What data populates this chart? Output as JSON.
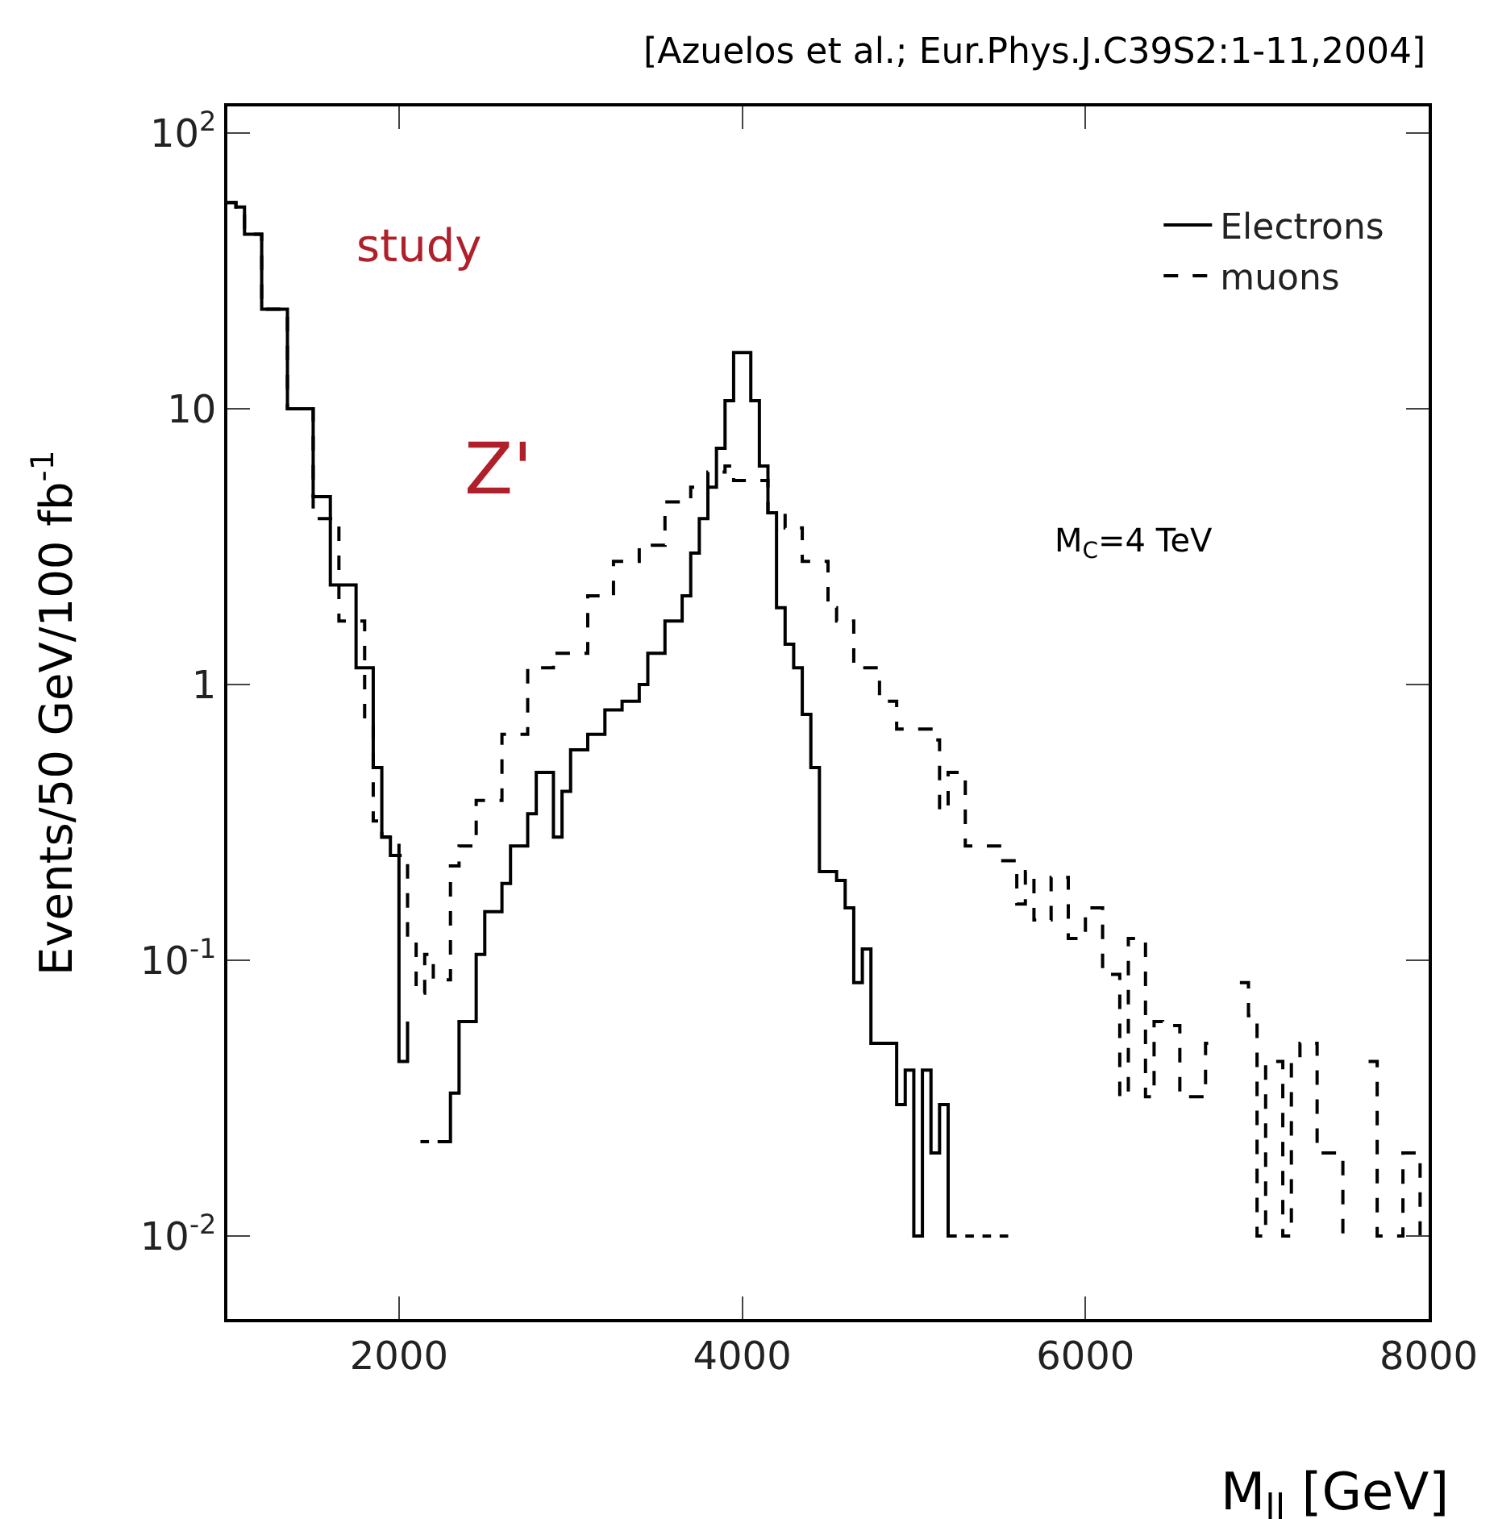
{
  "chart_data": {
    "type": "step",
    "xlabel": "M$_{ll}$ [GeV]",
    "ylabel": "Events/50 GeV/100 fb$^{-1}$",
    "annotations": [
      "[Azuelos et al.; Eur.Phys.J.C39S2:1-11,2004]",
      "study",
      "Z'",
      "M$_{C}$=4 TeV"
    ],
    "xlim": [
      1000,
      8000
    ],
    "xticks": [
      2000,
      4000,
      6000,
      8000
    ],
    "ylim": [
      0.005,
      125
    ],
    "yticks": [
      {
        "value": 100,
        "label": "10$^{2}$"
      },
      10,
      1,
      {
        "value": 0.1,
        "label": "10$^{-1}$"
      },
      {
        "value": 0.01,
        "label": "10$^{-2}$"
      }
    ],
    "log": "y",
    "legend": "top right",
    "marker": "none",
    "series": [
      {
        "name": "Electrons",
        "color": "#000000",
        "line_style": "solid",
        "x": [
          1000,
          1050,
          1100,
          1200,
          1350,
          1500,
          1600,
          1750,
          1850,
          1900,
          1950,
          2000,
          2050,
          2100,
          2125,
          2175,
          2200,
          2225,
          2300,
          2350,
          2450,
          2500,
          2600,
          2650,
          2750,
          2800,
          2900,
          2950,
          3000,
          3100,
          3200,
          3300,
          3400,
          3450,
          3550,
          3650,
          3700,
          3750,
          3800,
          3850,
          3900,
          3950,
          4000,
          4050,
          4100,
          4150,
          4200,
          4250,
          4300,
          4350,
          4400,
          4450,
          4550,
          4600,
          4650,
          4700,
          4750,
          4900,
          4950,
          5000,
          5050,
          5100,
          5150,
          5200,
          5250,
          5275,
          5300,
          5350,
          5375,
          5400,
          5450,
          5475,
          5500,
          5550
        ],
        "values": [
          56,
          54,
          43,
          23,
          10,
          4.8,
          2.3,
          1.15,
          0.5,
          0.28,
          0.24,
          0.043,
          0.06,
          null,
          0.022,
          0.022,
          null,
          0.022,
          0.033,
          0.06,
          0.105,
          0.15,
          0.19,
          0.26,
          0.34,
          0.48,
          0.28,
          0.41,
          0.58,
          0.66,
          0.81,
          0.87,
          1.0,
          1.3,
          1.7,
          2.1,
          3.0,
          4.0,
          5.2,
          7.2,
          10.7,
          16,
          16,
          10.7,
          6.2,
          4.2,
          1.9,
          1.4,
          1.15,
          0.78,
          0.5,
          0.21,
          0.195,
          0.155,
          0.083,
          0.11,
          0.05,
          0.03,
          0.04,
          0.01,
          0.04,
          0.02,
          0.03,
          0.01,
          0.01,
          null,
          0.01,
          0.01,
          null,
          0.01,
          0.01,
          null,
          0.01,
          0.01
        ]
      },
      {
        "name": "muons",
        "color": "#000000",
        "line_style": "dashed",
        "x": [
          1000,
          1050,
          1100,
          1200,
          1350,
          1500,
          1650,
          1800,
          1850,
          1900,
          2000,
          2050,
          2100,
          2150,
          2200,
          2300,
          2350,
          2450,
          2600,
          2750,
          2900,
          3100,
          3250,
          3400,
          3550,
          3700,
          3800,
          3900,
          3950,
          4100,
          4150,
          4250,
          4350,
          4500,
          4550,
          4650,
          4800,
          4900,
          5100,
          5150,
          5200,
          5300,
          5500,
          5600,
          5650,
          5700,
          5800,
          5900,
          6000,
          6100,
          6200,
          6250,
          6350,
          6400,
          6450,
          6550,
          6700,
          6750,
          6800,
          6900,
          6950,
          7000,
          7050,
          7150,
          7200,
          7250,
          7350,
          7500,
          7550,
          7650,
          7700,
          7850,
          7950,
          8000
        ],
        "values": [
          56,
          54,
          43,
          23,
          10,
          4.0,
          1.7,
          0.71,
          0.32,
          0.28,
          0.24,
          0.12,
          0.076,
          0.105,
          0.085,
          0.22,
          0.26,
          0.38,
          0.66,
          1.15,
          1.3,
          2.1,
          2.8,
          3.2,
          4.6,
          5.2,
          5.9,
          6.2,
          5.5,
          5.5,
          4.2,
          3.7,
          2.8,
          1.9,
          1.7,
          1.15,
          0.87,
          0.69,
          0.63,
          0.35,
          0.48,
          0.26,
          0.23,
          0.16,
          0.21,
          0.14,
          0.2,
          0.12,
          0.155,
          0.089,
          0.032,
          0.12,
          0.032,
          0.06,
          0.058,
          0.032,
          0.05,
          0.05,
          null,
          0.083,
          0.063,
          0.01,
          0.043,
          0.01,
          0.043,
          0.05,
          0.02,
          0.01,
          null,
          0.043,
          0.01,
          0.02,
          0.01,
          0.01
        ]
      }
    ]
  }
}
